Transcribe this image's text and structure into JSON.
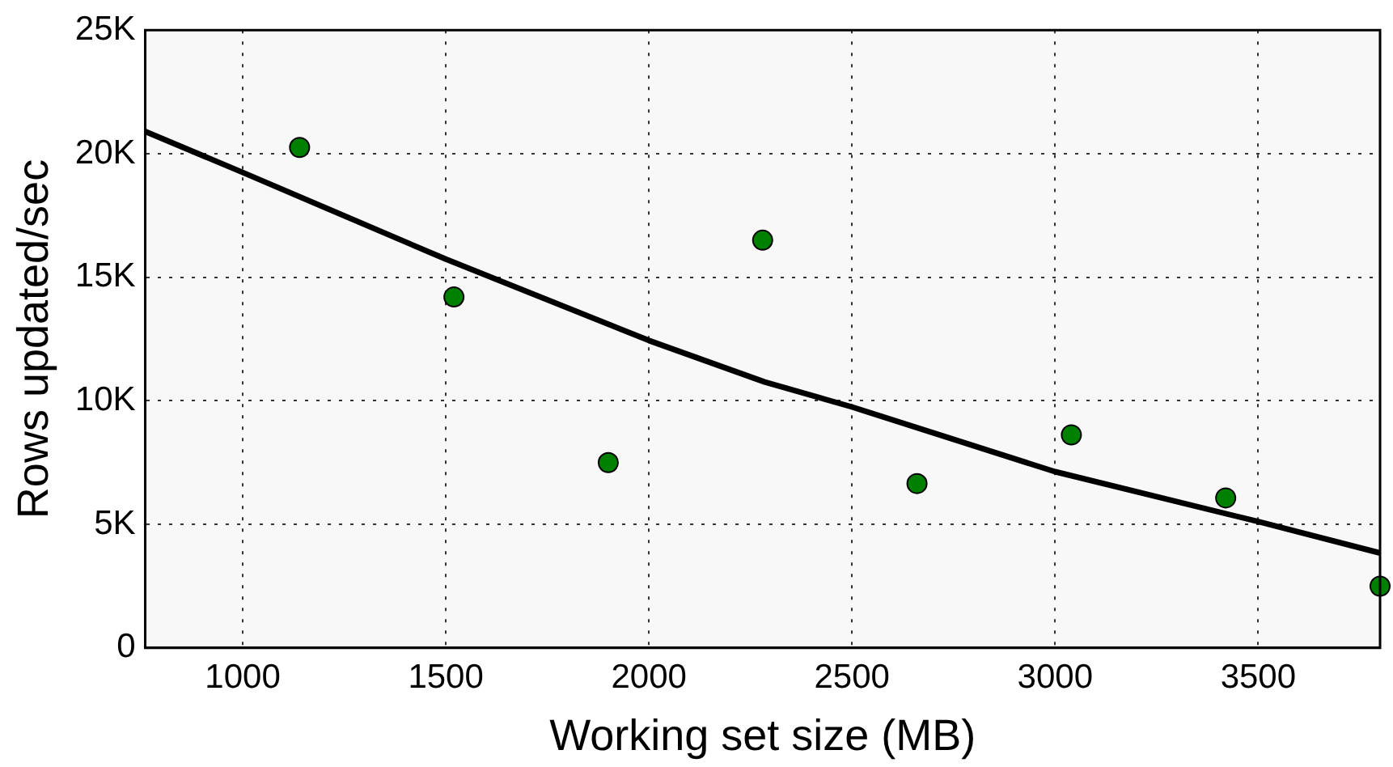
{
  "chart_data": {
    "type": "scatter",
    "xlabel": "Working set size (MB)",
    "ylabel": "Rows updated/sec",
    "xlim": [
      760,
      3800
    ],
    "xticks": [
      1000,
      1500,
      2000,
      2500,
      3000,
      3500
    ],
    "ylim": [
      0,
      25000
    ],
    "yticks": [
      {
        "value": 0,
        "label": "0"
      },
      {
        "value": 5000,
        "label": "5K"
      },
      {
        "value": 10000,
        "label": "10K"
      },
      {
        "value": 15000,
        "label": "15K"
      },
      {
        "value": 20000,
        "label": "20K"
      },
      {
        "value": 25000,
        "label": "25K"
      }
    ],
    "grid": true,
    "legend": false,
    "series": [
      {
        "type": "scatter",
        "color": "#008000",
        "marker": "circle",
        "x": [
          1140,
          1520,
          1900,
          2280,
          2660,
          3040,
          3420,
          3800
        ],
        "values": [
          20250,
          14200,
          7500,
          16500,
          6650,
          8620,
          6070,
          2500
        ]
      },
      {
        "type": "line",
        "color": "#000000",
        "marker": "none",
        "line_style": "solid",
        "x": [
          760,
          1000,
          1500,
          2000,
          2285,
          2500,
          3000,
          3500,
          3800
        ],
        "values": [
          20900,
          19240,
          15730,
          12440,
          10760,
          9750,
          7130,
          5110,
          3840
        ]
      }
    ]
  }
}
